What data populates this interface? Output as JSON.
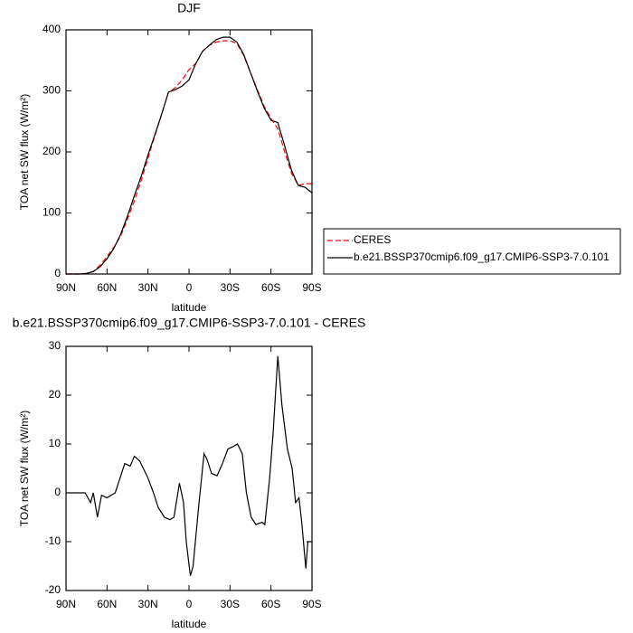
{
  "chart_data": [
    {
      "type": "line",
      "title": "DJF",
      "x_label": "latitude",
      "y_label": "TOA net SW flux (W/m²)",
      "x": [
        90,
        85,
        80,
        75,
        70,
        65,
        60,
        55,
        50,
        45,
        40,
        35,
        30,
        25,
        20,
        15,
        10,
        5,
        0,
        -5,
        -10,
        -15,
        -20,
        -25,
        -30,
        -35,
        -40,
        -45,
        -50,
        -55,
        -60,
        -65,
        -70,
        -75,
        -80,
        -85,
        -90
      ],
      "series": [
        {
          "name": "CERES",
          "color": "#ff0000",
          "line_style": "dashed",
          "values": [
            0,
            0,
            0,
            1,
            4,
            15,
            28,
            44,
            62,
            90,
            120,
            153,
            190,
            226,
            262,
            298,
            305,
            318,
            335,
            345,
            365,
            375,
            380,
            382,
            382,
            378,
            358,
            330,
            302,
            275,
            255,
            238,
            200,
            165,
            145,
            148,
            148
          ]
        },
        {
          "name": "b.e21.BSSP370cmip6.f09_g17.CMIP6-SSP3-7.0.101",
          "color": "#000000",
          "line_style": "solid",
          "values": [
            0,
            0,
            0,
            1,
            4,
            12,
            25,
            42,
            65,
            95,
            128,
            160,
            195,
            228,
            262,
            298,
            302,
            308,
            318,
            345,
            365,
            375,
            384,
            388,
            388,
            380,
            360,
            330,
            300,
            272,
            252,
            248,
            210,
            170,
            145,
            142,
            133
          ]
        }
      ],
      "xlim": [
        90,
        -90
      ],
      "xticks": [
        {
          "value": 90,
          "label": "90N"
        },
        {
          "value": 60,
          "label": "60N"
        },
        {
          "value": 30,
          "label": "30N"
        },
        0,
        {
          "value": -30,
          "label": "30S"
        },
        {
          "value": -60,
          "label": "60S"
        },
        {
          "value": -90,
          "label": "90S"
        }
      ],
      "ylim": [
        0,
        400
      ],
      "yticks": [
        0,
        100,
        200,
        300,
        400
      ],
      "legend": "right"
    },
    {
      "type": "line",
      "title": "b.e21.BSSP370cmip6.f09_g17.CMIP6-SSP3-7.0.101 - CERES",
      "x_label": "latitude",
      "y_label": "TOA net SW flux (W/m²)",
      "x": [
        90,
        80,
        76,
        72,
        70,
        67,
        64,
        60,
        54,
        47,
        43,
        40,
        36,
        30,
        26,
        22.5,
        18,
        14,
        11,
        7,
        4,
        2,
        -1,
        -3,
        -7,
        -11,
        -13,
        -16.5,
        -20.5,
        -24.5,
        -28.5,
        -32.5,
        -35.5,
        -39,
        -42,
        -45.5,
        -49,
        -53.5,
        -55.5,
        -59,
        -61.5,
        -65,
        -68,
        -72,
        -75.5,
        -78,
        -80.5,
        -82.5,
        -85.5,
        -87,
        -90
      ],
      "values": [
        0,
        0,
        0,
        -2,
        0,
        -5,
        -0.5,
        -1,
        0,
        6,
        5.5,
        7.5,
        6.5,
        3,
        0,
        -3,
        -5,
        -5.5,
        -5,
        2,
        -2,
        -10,
        -17,
        -15,
        -3,
        8,
        7,
        4,
        3.5,
        6,
        9,
        9.5,
        10,
        8,
        0,
        -5,
        -6.5,
        -6,
        -6.5,
        3,
        12,
        28,
        18,
        9,
        5,
        -2,
        -1,
        -6,
        -15.5,
        -10,
        -10
      ],
      "color": "#000000",
      "xlim": [
        90,
        -90
      ],
      "xticks": [
        {
          "value": 90,
          "label": "90N"
        },
        {
          "value": 60,
          "label": "60N"
        },
        {
          "value": 30,
          "label": "30N"
        },
        0,
        {
          "value": -30,
          "label": "30S"
        },
        {
          "value": -60,
          "label": "60S"
        },
        {
          "value": -90,
          "label": "90S"
        }
      ],
      "ylim": [
        -20,
        30
      ],
      "yticks": [
        -20,
        -10,
        0,
        10,
        20,
        30
      ]
    }
  ]
}
